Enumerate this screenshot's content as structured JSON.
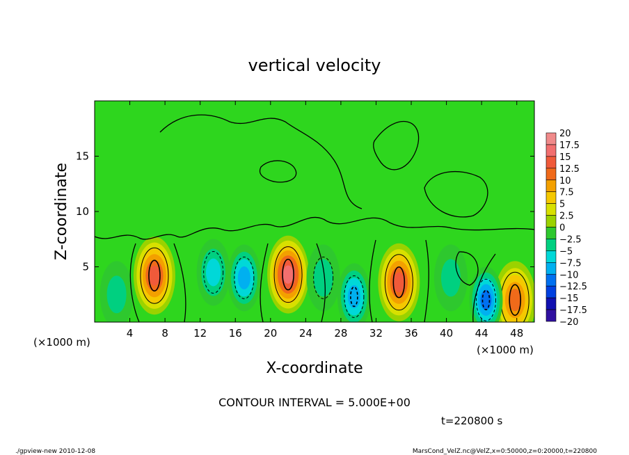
{
  "chart_data": {
    "type": "heatmap",
    "title": "vertical velocity",
    "xlabel": "X-coordinate",
    "ylabel": "Z-coordinate",
    "x_unit": "(×1000 m)",
    "y_unit": "(×1000 m)",
    "xlim": [
      0,
      50
    ],
    "ylim": [
      0,
      20
    ],
    "x_ticks": [
      4,
      8,
      12,
      16,
      20,
      24,
      28,
      32,
      36,
      40,
      44,
      48
    ],
    "y_ticks": [
      5,
      10,
      15
    ],
    "colorbar": {
      "levels": [
        20,
        17.5,
        15,
        12.5,
        10,
        7.5,
        5,
        2.5,
        0,
        -2.5,
        -5,
        -7.5,
        -10,
        -12.5,
        -15,
        -17.5,
        -20
      ],
      "colors": [
        "#f08a8a",
        "#f26f6f",
        "#f05a3a",
        "#f06a1a",
        "#f3a000",
        "#f5c800",
        "#d8e000",
        "#9bd200",
        "#2ec82e",
        "#00d080",
        "#00d8d8",
        "#00b0f0",
        "#0070f0",
        "#0040e0",
        "#1010b0",
        "#3010a0"
      ]
    },
    "features": [
      {
        "x": 6.8,
        "z": 4.2,
        "w": 14
      },
      {
        "x": 22.0,
        "z": 4.3,
        "w": 16
      },
      {
        "x": 34.6,
        "z": 3.6,
        "w": 15
      },
      {
        "x": 47.8,
        "z": 2.0,
        "w": 12
      },
      {
        "x": 2.5,
        "z": 2.5,
        "w": -4
      },
      {
        "x": 13.5,
        "z": 4.5,
        "w": -6
      },
      {
        "x": 17.0,
        "z": 4.0,
        "w": -9
      },
      {
        "x": 26.0,
        "z": 4.0,
        "w": -5
      },
      {
        "x": 29.5,
        "z": 2.3,
        "w": -10
      },
      {
        "x": 44.5,
        "z": 2.0,
        "w": -11
      },
      {
        "x": 40.5,
        "z": 4.0,
        "w": -3
      }
    ],
    "contour_interval_text": "CONTOUR INTERVAL = 5.000E+00",
    "time_text": "t=220800 s"
  },
  "footer": {
    "left": "./gpview-new  2010-12-08",
    "right": "MarsCond_VelZ.nc@VelZ,x=0:50000,z=0:20000,t=220800"
  }
}
